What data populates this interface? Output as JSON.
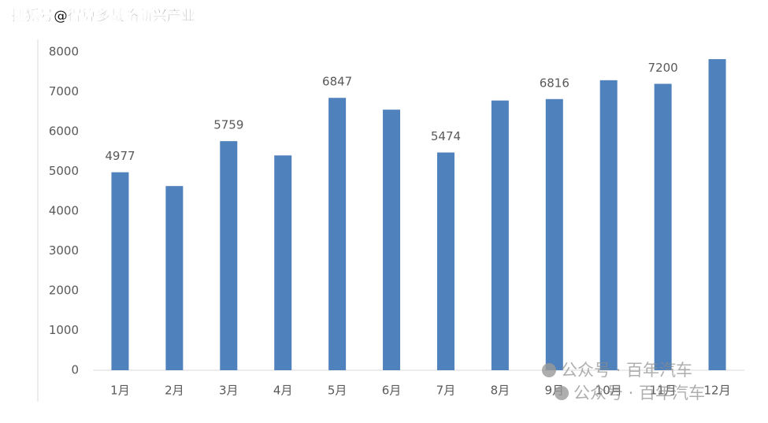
{
  "chart_data": {
    "type": "bar",
    "categories": [
      "1月",
      "2月",
      "3月",
      "4月",
      "5月",
      "6月",
      "7月",
      "8月",
      "9月",
      "10月",
      "11月",
      "12月"
    ],
    "values": [
      4977,
      4630,
      5759,
      5400,
      6847,
      6550,
      5474,
      6780,
      6816,
      7290,
      7200,
      7820
    ],
    "value_labels": [
      "4977",
      null,
      "5759",
      null,
      "6847",
      null,
      "5474",
      null,
      "6816",
      null,
      "7200",
      null
    ],
    "color": "#4f81bd",
    "ylim": [
      0,
      8000
    ],
    "yticks": [
      0,
      1000,
      2000,
      3000,
      4000,
      5000,
      6000,
      7000,
      8000
    ],
    "grid": false
  },
  "watermarks": [
    "搜狐号@得算多战略新兴产业",
    "公众号 · 百年汽车",
    "公众号 · 百年汽车"
  ]
}
